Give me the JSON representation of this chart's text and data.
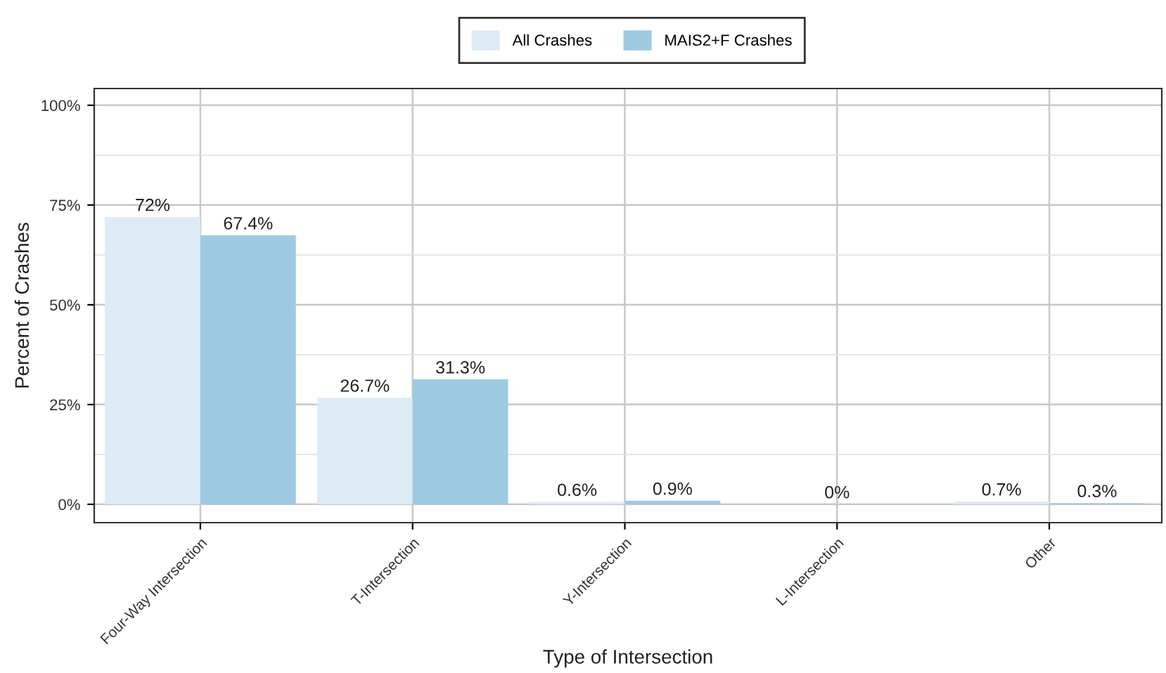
{
  "chart_data": {
    "type": "bar",
    "xlabel": "Type of Intersection",
    "ylabel": "Percent of Crashes",
    "categories": [
      "Four-Way Intersection",
      "T-Intersection",
      "Y-Intersection",
      "L-Intersection",
      "Other"
    ],
    "series": [
      {
        "name": "All Crashes",
        "color": "#deebf7",
        "values": [
          72,
          26.7,
          0.6,
          0,
          0.7
        ],
        "value_labels": [
          "72%",
          "26.7%",
          "0.6%",
          "0%",
          "0.7%"
        ]
      },
      {
        "name": "MAIS2+F Crashes",
        "color": "#9ecae1",
        "values": [
          67.4,
          31.3,
          0.9,
          null,
          0.3
        ],
        "value_labels": [
          "67.4%",
          "31.3%",
          "0.9%",
          null,
          "0.3%"
        ]
      }
    ],
    "ylim": [
      -4.6,
      104.2
    ],
    "yticks": [
      {
        "value": 0,
        "label": "0%"
      },
      {
        "value": 25,
        "label": "25%"
      },
      {
        "value": 50,
        "label": "50%"
      },
      {
        "value": 75,
        "label": "75%"
      },
      {
        "value": 100,
        "label": "100%"
      }
    ],
    "grid": true,
    "legend": "top"
  }
}
